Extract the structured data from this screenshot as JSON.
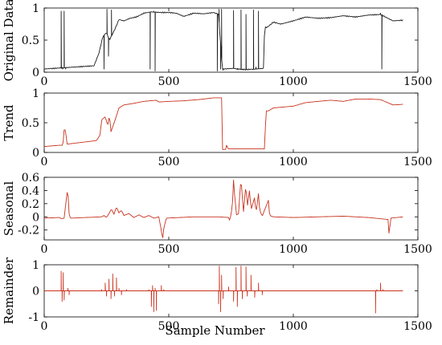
{
  "chart_data": [
    {
      "type": "line",
      "ylabel": "Original Data",
      "xlim": [
        0,
        1500
      ],
      "ylim": [
        0,
        1
      ],
      "xticks": [
        0,
        500,
        1000,
        1500
      ],
      "yticks": [
        0,
        0.5,
        1
      ],
      "ytick_labels": [
        "0",
        "0.5",
        "1"
      ],
      "line_color": "#1a1a1a",
      "series": [
        {
          "base": [
            [
              0,
              0.05
            ],
            [
              80,
              0.07
            ],
            [
              200,
              0.1
            ],
            [
              220,
              0.3
            ],
            [
              235,
              0.55
            ],
            [
              250,
              0.62
            ],
            [
              262,
              0.5
            ],
            [
              285,
              0.68
            ],
            [
              300,
              0.82
            ],
            [
              320,
              0.8
            ],
            [
              345,
              0.84
            ],
            [
              370,
              0.86
            ],
            [
              400,
              0.92
            ],
            [
              430,
              0.94
            ],
            [
              470,
              0.93
            ],
            [
              500,
              0.93
            ],
            [
              530,
              0.92
            ],
            [
              560,
              0.87
            ],
            [
              600,
              0.92
            ],
            [
              640,
              0.91
            ],
            [
              680,
              0.93
            ],
            [
              700,
              0.9
            ],
            [
              715,
              0.05
            ],
            [
              760,
              0.06
            ],
            [
              800,
              0.04
            ],
            [
              850,
              0.05
            ],
            [
              880,
              0.06
            ],
            [
              885,
              0.7
            ],
            [
              895,
              0.7
            ],
            [
              920,
              0.78
            ],
            [
              950,
              0.75
            ],
            [
              1000,
              0.8
            ],
            [
              1050,
              0.86
            ],
            [
              1100,
              0.84
            ],
            [
              1150,
              0.85
            ],
            [
              1200,
              0.88
            ],
            [
              1250,
              0.86
            ],
            [
              1300,
              0.89
            ],
            [
              1350,
              0.9
            ],
            [
              1380,
              0.84
            ],
            [
              1400,
              0.8
            ],
            [
              1440,
              0.81
            ]
          ],
          "spikes": [
            [
              68,
              0.95
            ],
            [
              74,
              0.05
            ],
            [
              80,
              0.95
            ],
            [
              86,
              0.05
            ],
            [
              240,
              0.05
            ],
            [
              252,
              0.98
            ],
            [
              258,
              0.25
            ],
            [
              270,
              0.97
            ],
            [
              425,
              0.05
            ],
            [
              440,
              0.95
            ],
            [
              445,
              0.02
            ],
            [
              455,
              0.93
            ],
            [
              695,
              0.02
            ],
            [
              702,
              0.98
            ],
            [
              708,
              0.05
            ],
            [
              712,
              0.98
            ],
            [
              718,
              0.03
            ],
            [
              760,
              0.96
            ],
            [
              775,
              0.04
            ],
            [
              790,
              0.97
            ],
            [
              798,
              0.05
            ],
            [
              810,
              0.9
            ],
            [
              820,
              0.05
            ],
            [
              840,
              0.97
            ],
            [
              850,
              0.08
            ],
            [
              860,
              0.95
            ],
            [
              870,
              0.06
            ],
            [
              1350,
              0.92
            ],
            [
              1355,
              0.05
            ]
          ]
        }
      ]
    },
    {
      "type": "line",
      "ylabel": "Trend",
      "xlim": [
        0,
        1500
      ],
      "ylim": [
        0,
        1
      ],
      "xticks": [
        0,
        500,
        1000,
        1500
      ],
      "yticks": [
        0,
        0.5,
        1
      ],
      "ytick_labels": [
        "0",
        "0.5",
        "1"
      ],
      "line_color": "#c8321e",
      "series": [
        {
          "base": [
            [
              0,
              0.1
            ],
            [
              60,
              0.12
            ],
            [
              75,
              0.12
            ],
            [
              80,
              0.38
            ],
            [
              85,
              0.38
            ],
            [
              92,
              0.14
            ],
            [
              210,
              0.2
            ],
            [
              225,
              0.3
            ],
            [
              230,
              0.55
            ],
            [
              245,
              0.6
            ],
            [
              255,
              0.45
            ],
            [
              262,
              0.63
            ],
            [
              268,
              0.35
            ],
            [
              285,
              0.55
            ],
            [
              300,
              0.75
            ],
            [
              320,
              0.8
            ],
            [
              350,
              0.82
            ],
            [
              400,
              0.86
            ],
            [
              450,
              0.88
            ],
            [
              460,
              0.85
            ],
            [
              500,
              0.86
            ],
            [
              560,
              0.87
            ],
            [
              620,
              0.89
            ],
            [
              680,
              0.92
            ],
            [
              712,
              0.92
            ],
            [
              715,
              0.05
            ],
            [
              728,
              0.05
            ],
            [
              730,
              0.14
            ],
            [
              738,
              0.06
            ],
            [
              800,
              0.06
            ],
            [
              885,
              0.06
            ],
            [
              890,
              0.7
            ],
            [
              900,
              0.7
            ],
            [
              920,
              0.75
            ],
            [
              1000,
              0.78
            ],
            [
              1050,
              0.84
            ],
            [
              1100,
              0.86
            ],
            [
              1150,
              0.88
            ],
            [
              1200,
              0.86
            ],
            [
              1250,
              0.9
            ],
            [
              1300,
              0.9
            ],
            [
              1350,
              0.89
            ],
            [
              1400,
              0.8
            ],
            [
              1440,
              0.81
            ]
          ],
          "spikes": []
        }
      ]
    },
    {
      "type": "line",
      "ylabel": "Seasonal",
      "xlim": [
        0,
        1500
      ],
      "ylim": [
        -0.35,
        0.6
      ],
      "xticks": [
        0,
        500,
        1000,
        1500
      ],
      "yticks": [
        -0.2,
        0,
        0.2,
        0.4,
        0.6
      ],
      "ytick_labels": [
        "-0.2",
        "0",
        "0.2",
        "0.4",
        "0.6"
      ],
      "line_color": "#c8321e",
      "series": [
        {
          "base": [
            [
              0,
              -0.02
            ],
            [
              60,
              -0.01
            ],
            [
              70,
              -0.03
            ],
            [
              80,
              -0.02
            ],
            [
              92,
              0.37
            ],
            [
              95,
              0.38
            ],
            [
              100,
              0.05
            ],
            [
              105,
              -0.02
            ],
            [
              230,
              0.0
            ],
            [
              240,
              0.02
            ],
            [
              250,
              -0.01
            ],
            [
              260,
              0.05
            ],
            [
              270,
              0.12
            ],
            [
              280,
              0.04
            ],
            [
              290,
              0.15
            ],
            [
              300,
              0.06
            ],
            [
              310,
              0.1
            ],
            [
              320,
              0.02
            ],
            [
              340,
              0.05
            ],
            [
              360,
              -0.01
            ],
            [
              380,
              0.03
            ],
            [
              400,
              -0.01
            ],
            [
              420,
              0.02
            ],
            [
              440,
              -0.02
            ],
            [
              460,
              0.0
            ],
            [
              470,
              -0.2
            ],
            [
              475,
              -0.35
            ],
            [
              480,
              -0.18
            ],
            [
              490,
              -0.02
            ],
            [
              600,
              0.0
            ],
            [
              700,
              0.0
            ],
            [
              740,
              -0.01
            ],
            [
              745,
              -0.06
            ],
            [
              755,
              0.15
            ],
            [
              760,
              0.56
            ],
            [
              765,
              0.3
            ],
            [
              772,
              0.03
            ],
            [
              780,
              0.05
            ],
            [
              790,
              0.6
            ],
            [
              795,
              0.3
            ],
            [
              800,
              0.08
            ],
            [
              810,
              0.5
            ],
            [
              815,
              0.15
            ],
            [
              825,
              0.42
            ],
            [
              830,
              0.1
            ],
            [
              845,
              0.3
            ],
            [
              850,
              0.05
            ],
            [
              860,
              0.35
            ],
            [
              865,
              0.1
            ],
            [
              875,
              0.01
            ],
            [
              900,
              0.25
            ],
            [
              905,
              0.02
            ],
            [
              920,
              0.0
            ],
            [
              1000,
              -0.01
            ],
            [
              1100,
              0.0
            ],
            [
              1200,
              0.01
            ],
            [
              1300,
              -0.01
            ],
            [
              1380,
              -0.04
            ],
            [
              1385,
              -0.3
            ],
            [
              1390,
              -0.02
            ],
            [
              1440,
              0.0
            ]
          ],
          "spikes": []
        }
      ]
    },
    {
      "type": "line",
      "ylabel": "Remainder",
      "xlabel": "Sample Number",
      "xlim": [
        0,
        1500
      ],
      "ylim": [
        -1,
        1
      ],
      "xticks": [
        0,
        500,
        1000,
        1500
      ],
      "yticks": [
        -1,
        0,
        1
      ],
      "ytick_labels": [
        "-1",
        "0",
        "1"
      ],
      "line_color": "#c8321e",
      "series": [
        {
          "base": [
            [
              0,
              0.0
            ],
            [
              1440,
              0.0
            ]
          ],
          "spikes": [
            [
              68,
              0.75
            ],
            [
              72,
              -0.4
            ],
            [
              76,
              0.7
            ],
            [
              80,
              -0.35
            ],
            [
              95,
              0.1
            ],
            [
              100,
              -0.15
            ],
            [
              230,
              0.05
            ],
            [
              245,
              0.3
            ],
            [
              250,
              -0.2
            ],
            [
              260,
              0.45
            ],
            [
              268,
              -0.3
            ],
            [
              275,
              0.65
            ],
            [
              282,
              -0.2
            ],
            [
              290,
              0.5
            ],
            [
              300,
              0.1
            ],
            [
              310,
              -0.15
            ],
            [
              330,
              0.05
            ],
            [
              420,
              0.05
            ],
            [
              430,
              -0.6
            ],
            [
              435,
              0.2
            ],
            [
              440,
              -0.8
            ],
            [
              445,
              0.1
            ],
            [
              450,
              -0.75
            ],
            [
              470,
              0.2
            ],
            [
              480,
              0.05
            ],
            [
              700,
              -0.5
            ],
            [
              703,
              0.95
            ],
            [
              708,
              -0.8
            ],
            [
              712,
              0.6
            ],
            [
              718,
              -0.3
            ],
            [
              740,
              0.15
            ],
            [
              760,
              -0.4
            ],
            [
              770,
              0.9
            ],
            [
              775,
              -0.6
            ],
            [
              790,
              0.95
            ],
            [
              795,
              -0.3
            ],
            [
              810,
              0.92
            ],
            [
              815,
              -0.2
            ],
            [
              830,
              0.6
            ],
            [
              845,
              -0.25
            ],
            [
              860,
              0.3
            ],
            [
              875,
              -0.15
            ],
            [
              1330,
              -0.85
            ],
            [
              1335,
              0.05
            ],
            [
              1350,
              0.3
            ],
            [
              1360,
              0.05
            ]
          ]
        }
      ]
    }
  ]
}
